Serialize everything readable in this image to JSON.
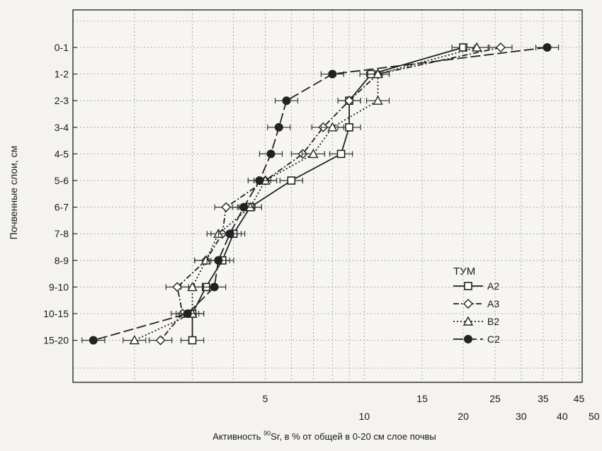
{
  "chart_data": {
    "type": "line",
    "title": "",
    "xlabel_prefix": "Активность ",
    "xlabel_sup": "90",
    "xlabel_suffix": "Sr, в % от общей в 0-20 см слое почвы",
    "ylabel": "Почвенные слои, см",
    "x_scale": "log",
    "xlim": [
      1.3,
      46
    ],
    "x_ticks_row1": [
      5,
      15,
      25,
      35,
      45
    ],
    "x_ticks_row2": [
      10,
      20,
      30,
      40,
      50
    ],
    "categories": [
      "0-1",
      "1-2",
      "2-3",
      "3-4",
      "4-5",
      "5-6",
      "6-7",
      "7-8",
      "8-9",
      "9-10",
      "10-15",
      "15-20"
    ],
    "grid": true,
    "legend_title": "ТУМ",
    "legend_position": "right",
    "series": [
      {
        "name": "А2",
        "marker": "square",
        "dash": "solid",
        "values": [
          20,
          10.5,
          9,
          9,
          8.5,
          6,
          4.5,
          4,
          3.7,
          3.3,
          3,
          3
        ]
      },
      {
        "name": "А3",
        "marker": "diamond",
        "dash": "dash-dot",
        "values": [
          26,
          11,
          9,
          7.5,
          6.5,
          5,
          3.8,
          3.7,
          3.3,
          2.7,
          2.8,
          2.4
        ]
      },
      {
        "name": "В2",
        "marker": "triangle",
        "dash": "dotted",
        "values": [
          22,
          11,
          11,
          8,
          7,
          5,
          4.5,
          3.6,
          3.3,
          3,
          3,
          2
        ]
      },
      {
        "name": "С2",
        "marker": "circle",
        "dash": "long-dash",
        "values": [
          36,
          8,
          5.8,
          5.5,
          5.2,
          4.8,
          4.3,
          3.9,
          3.6,
          3.5,
          2.9,
          1.5
        ]
      }
    ]
  }
}
